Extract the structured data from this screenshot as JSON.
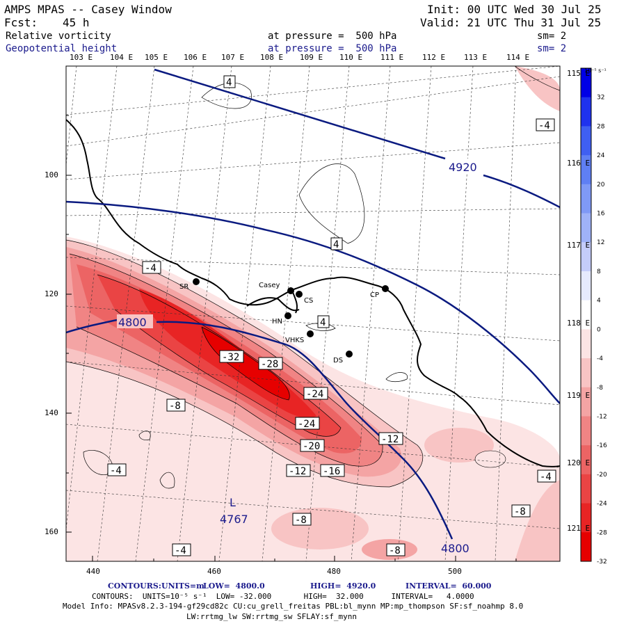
{
  "header": {
    "model": "AMPS MPAS -- Casey Window",
    "init": "Init: 00 UTC Wed 30 Jul 25",
    "fcst_label": "Fcst:",
    "fcst_value": "45 h",
    "valid": "Valid: 21 UTC Thu 31 Jul 25",
    "field1": "Relative vorticity",
    "field1_level": "at pressure =  500 hPa",
    "field1_sm": "sm= 2",
    "field2": "Geopotential height",
    "field2_level": "at pressure =  500 hPa",
    "field2_sm": "sm= 2"
  },
  "lon_top": [
    "103 E",
    "104 E",
    "105 E",
    "106 E",
    "107 E",
    "108 E",
    "109 E",
    "110 E",
    "111 E",
    "112 E",
    "113 E",
    "114 E"
  ],
  "lon_right": [
    "115 E",
    "116 E",
    "117 E",
    "118 E",
    "119 E",
    "120 E",
    "121 E"
  ],
  "y_ticks": [
    "100",
    "120",
    "140",
    "160"
  ],
  "x_ticks": [
    "440",
    "460",
    "480",
    "500"
  ],
  "colorbar": {
    "unit": "10⁻⁵ s⁻¹",
    "labels": [
      "32",
      "28",
      "24",
      "20",
      "16",
      "12",
      "8",
      "4",
      "0",
      "-4",
      "-8",
      "-12",
      "-16",
      "-20",
      "-24",
      "-28",
      "-32"
    ],
    "colors": [
      "#0000e6",
      "#1f32ee",
      "#3f5ff2",
      "#5f7ff4",
      "#7f99f6",
      "#9fb2f8",
      "#c4ccfa",
      "#e6eafd",
      "#ffffff",
      "#fce4e4",
      "#f8c4c4",
      "#f4a4a4",
      "#f08484",
      "#ec6464",
      "#ea4444",
      "#e82424",
      "#e60000"
    ]
  },
  "stations": [
    {
      "id": "SR",
      "label": "SR"
    },
    {
      "id": "casey",
      "label": "Casey"
    },
    {
      "id": "CS",
      "label": "CS"
    },
    {
      "id": "HN",
      "label": "HN"
    },
    {
      "id": "VHKS",
      "label": "VHKS"
    },
    {
      "id": "DS",
      "label": "DS"
    },
    {
      "id": "CP",
      "label": "CP"
    }
  ],
  "vort_labels": [
    "4",
    "-4",
    "4",
    "-4",
    "4",
    "-32",
    "-28",
    "-24",
    "-24",
    "-20",
    "-12",
    "-12",
    "-16",
    "-8",
    "-4",
    "-8",
    "-8",
    "-4",
    "-8",
    "-4",
    "-8"
  ],
  "height_labels": [
    "4920",
    "4800",
    "4800"
  ],
  "low": {
    "letter": "L",
    "value": "4767"
  },
  "footer": {
    "line1_label": "CONTOURS:",
    "line1_units": "UNITS=m",
    "line1_low": "LOW=  4800.0",
    "line1_high": "HIGH=  4920.0",
    "line1_int": "INTERVAL=  60.000",
    "line2": "CONTOURS:  UNITS=10⁻⁵ s⁻¹  LOW= -32.000       HIGH=  32.000      INTERVAL=   4.0000",
    "line3": "Model Info: MPASv8.2.3-194-gf29cd82c CU:cu_grell_freitas PBL:bl_mynn MP:mp_thompson SF:sf_noahmp 8.0",
    "line4": "LW:rrtmg_lw SW:rrtmg_sw SFLAY:sf_mynn"
  }
}
